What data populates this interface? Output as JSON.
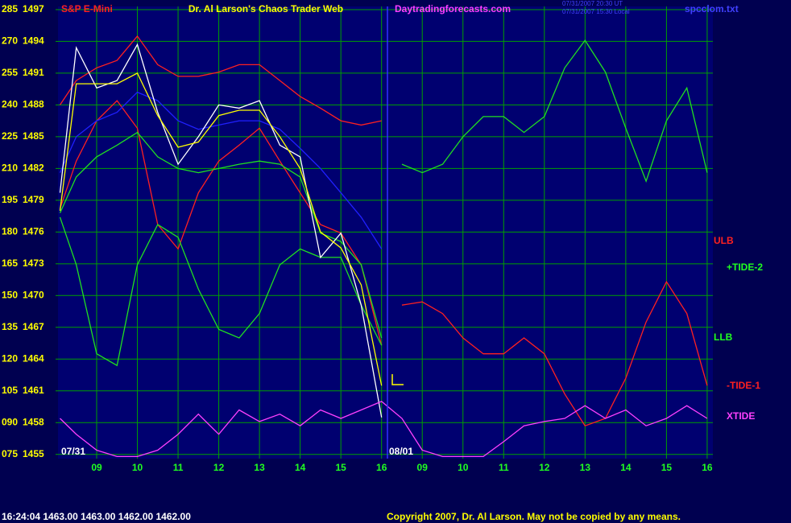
{
  "chart_data": {
    "type": "line",
    "title": "Dr. Al Larson's Chaos Trader Web",
    "symbol": "S&P E-Mini",
    "website": "Daytradingforecasts.com",
    "file": "spcclom.txt",
    "timestamps": [
      "07/31/2007 20:30 UT",
      "07/31/2007 15:30 Local"
    ],
    "dates": [
      "07/31",
      "08/01"
    ],
    "status": "16:24:04  1463.00 1463.00 1462.00 1462.00",
    "copyright": "Copyright 2007, Dr. Al Larson. May not be copied by any means.",
    "annotations": [
      {
        "text": "ULB",
        "color": "#ff2020"
      },
      {
        "text": "+TIDE-2",
        "color": "#20ff20"
      },
      {
        "text": "LLB",
        "color": "#20ff20"
      },
      {
        "text": "-TIDE-1",
        "color": "#ff2020"
      },
      {
        "text": "XTIDE",
        "color": "#ff40ff"
      }
    ],
    "grid": true,
    "xlim": [
      8.05,
      24.14
    ],
    "xticks": [
      {
        "value": 9,
        "label": "09"
      },
      10,
      11,
      12,
      13,
      14,
      15,
      16,
      {
        "value": 17,
        "label": "09"
      },
      {
        "value": 18,
        "label": "10"
      },
      {
        "value": 19,
        "label": "11"
      },
      {
        "value": 20,
        "label": "12"
      },
      {
        "value": 21,
        "label": "13"
      },
      {
        "value": 22,
        "label": "14"
      },
      {
        "value": 23,
        "label": "15"
      },
      {
        "value": 24,
        "label": "16"
      }
    ],
    "ylim": [
      1454.6,
      1497.3
    ],
    "yticks": [
      1455,
      1458,
      1461,
      1464,
      1467,
      1470,
      1473,
      1476,
      1479,
      1482,
      1485,
      1488,
      1491,
      1494,
      1497
    ],
    "y2lim": [
      73,
      286.5
    ],
    "y2ticks": [
      {
        "value": 75,
        "label": "075"
      },
      {
        "value": 90,
        "label": "090"
      },
      105,
      120,
      135,
      150,
      165,
      180,
      195,
      210,
      225,
      240,
      255,
      270,
      285
    ],
    "x": [
      8.1,
      8.5,
      9,
      9.5,
      10,
      10.5,
      11,
      11.5,
      12,
      12.5,
      13,
      13.5,
      14,
      14.5,
      15,
      15.5,
      16,
      16.5,
      17,
      17.5,
      18,
      18.5,
      19,
      19.5,
      20,
      20.5,
      21,
      21.5,
      22,
      22.5,
      23,
      23.5,
      24
    ],
    "series": [
      {
        "color": "#ff2020",
        "values": [
          1488.0,
          1490.3,
          1491.5,
          1492.2,
          1494.5,
          1491.8,
          1490.7,
          1490.7,
          1491.1,
          1491.8,
          1491.8,
          1490.3,
          1488.8,
          1487.7,
          1486.5,
          1486.1,
          1486.5,
          null,
          null,
          null,
          null,
          null,
          null,
          null,
          null,
          null,
          null,
          null,
          null,
          null,
          null,
          null,
          null
        ]
      },
      {
        "color": "#ff2020",
        "values": [
          1478.2,
          1482.7,
          1486.5,
          1488.4,
          1485.8,
          1476.7,
          1474.4,
          1479.7,
          1482.7,
          1484.2,
          1485.8,
          1482.7,
          1479.7,
          1476.7,
          1475.9,
          1472.9,
          1465.3,
          null,
          null,
          null,
          null,
          null,
          null,
          null,
          null,
          null,
          null,
          null,
          null,
          null,
          null,
          null,
          null
        ]
      },
      {
        "color": "#20e020",
        "values": [
          1477.8,
          1481.2,
          1483.1,
          1484.2,
          1485.4,
          1483.1,
          1482.0,
          1481.6,
          1482.0,
          1482.4,
          1482.7,
          1482.4,
          1481.2,
          1475.9,
          1475.1,
          1472.9,
          1466.0,
          null,
          null,
          null,
          null,
          null,
          null,
          null,
          null,
          null,
          null,
          null,
          null,
          null,
          null,
          null,
          null
        ]
      },
      {
        "color": "#20e020",
        "values": [
          1477.4,
          1472.9,
          1464.5,
          1463.4,
          1472.9,
          1476.7,
          1475.5,
          1470.6,
          1466.8,
          1466.0,
          1468.3,
          1472.9,
          1474.4,
          1473.6,
          1473.6,
          1469.1,
          1465.3,
          null,
          null,
          null,
          null,
          null,
          null,
          null,
          null,
          null,
          null,
          null,
          null,
          null,
          null,
          null,
          null
        ]
      },
      {
        "color": "#2020ff",
        "values": [
          1481.6,
          1485.0,
          1486.5,
          1487.3,
          1489.2,
          1488.4,
          1486.5,
          1485.7,
          1486.1,
          1486.5,
          1486.5,
          1485.7,
          1483.9,
          1482.0,
          1479.7,
          1477.4,
          1474.4,
          null,
          null,
          null,
          null,
          null,
          null,
          null,
          null,
          null,
          null,
          null,
          null,
          null,
          null,
          null,
          null
        ]
      },
      {
        "color": "#ffffff",
        "values": [
          1479.7,
          1493.4,
          1489.6,
          1490.3,
          1493.7,
          1487.3,
          1482.4,
          1485.0,
          1488.0,
          1487.7,
          1488.4,
          1484.2,
          1483.1,
          1473.6,
          1475.9,
          1469.1,
          1458.5,
          null,
          null,
          null,
          null,
          null,
          null,
          null,
          null,
          null,
          null,
          null,
          null,
          null,
          null,
          null,
          null
        ]
      },
      {
        "color": "#ffff00",
        "values": [
          1478,
          1490,
          1490,
          1490,
          1491,
          1487,
          1484,
          1484.5,
          1487,
          1487.5,
          1487.5,
          1485,
          1482,
          1476,
          1474.5,
          1471,
          1461.5,
          null,
          null,
          null,
          null,
          null,
          null,
          null,
          null,
          null,
          null,
          null,
          null,
          null,
          null,
          null,
          null
        ]
      },
      {
        "color": "#20e020",
        "values": [
          null,
          null,
          null,
          null,
          null,
          null,
          null,
          null,
          null,
          null,
          null,
          null,
          null,
          null,
          null,
          null,
          null,
          1482.4,
          1481.6,
          1482.4,
          1485.0,
          1486.9,
          1486.9,
          1485.4,
          1486.9,
          1491.5,
          1494.1,
          1491.1,
          1485.8,
          1480.8,
          1486.5,
          1489.6,
          1481.6
        ]
      },
      {
        "color": "#ff2020",
        "values": [
          null,
          null,
          null,
          null,
          null,
          null,
          null,
          null,
          null,
          null,
          null,
          null,
          null,
          null,
          null,
          null,
          null,
          1469.1,
          1469.4,
          1468.3,
          1466.0,
          1464.5,
          1464.5,
          1466.0,
          1464.5,
          1460.7,
          1457.7,
          1458.4,
          1462.2,
          1467.5,
          1471.3,
          1468.3,
          1461.5
        ]
      },
      {
        "color": "#ff40ff",
        "values": [
          1458.4,
          1456.9,
          1455.4,
          1454.8,
          1454.8,
          1455.4,
          1456.9,
          1458.8,
          1456.9,
          1459.2,
          1458.1,
          1458.8,
          1457.7,
          1459.2,
          1458.4,
          1459.2,
          1460.0,
          1458.4,
          1455.4,
          1454.8,
          1454.8,
          1454.8,
          1456.2,
          1457.7,
          1458.1,
          1458.4,
          1459.6,
          1458.4,
          1459.2,
          1457.7,
          1458.4,
          1459.6,
          1458.4
        ]
      }
    ]
  }
}
